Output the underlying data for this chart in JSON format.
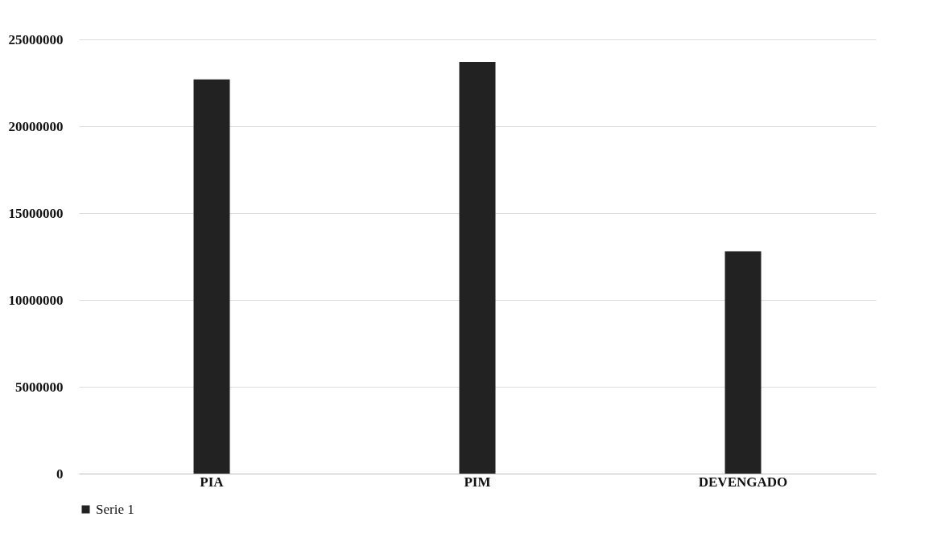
{
  "chart_data": {
    "type": "bar",
    "categories": [
      "PIA",
      "PIM",
      "DEVENGADO"
    ],
    "series": [
      {
        "name": "Serie 1",
        "color": "#222222",
        "values": [
          22700000,
          23700000,
          12800000
        ]
      }
    ],
    "ylim": [
      0,
      25000000
    ],
    "yticks": [
      0,
      5000000,
      10000000,
      15000000,
      20000000,
      25000000
    ],
    "grid": "y",
    "legend": "bottom"
  }
}
